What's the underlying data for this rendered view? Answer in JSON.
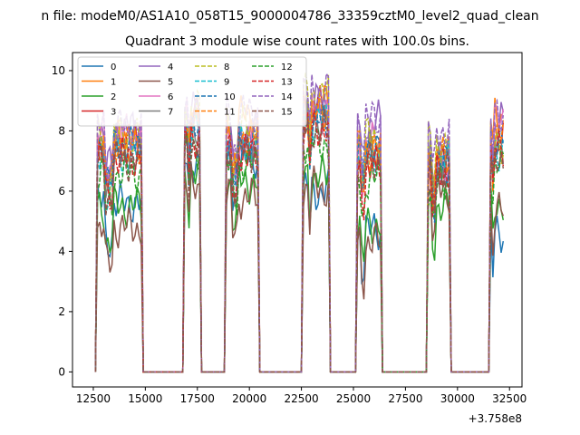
{
  "chart_data": {
    "type": "line",
    "suptitle": "n file: modeM0/AS1A10_058T15_9000004786_33359cztM0_level2_quad_clean",
    "title": "Quadrant 3 module wise count rates with 100.0s bins.",
    "xlabel": "",
    "ylabel": "",
    "x_offset_label": "+3.758e8",
    "xlim": [
      11500,
      33100
    ],
    "ylim": [
      -0.5,
      10.6
    ],
    "x_ticks": [
      12500,
      15000,
      17500,
      20000,
      22500,
      25000,
      27500,
      30000,
      32500
    ],
    "y_ticks": [
      0,
      2,
      4,
      6,
      8,
      10
    ],
    "legend": {
      "position": "top-left",
      "ncol": 4
    },
    "grid": false,
    "active_windows": [
      [
        12650,
        14850
      ],
      [
        16850,
        17600
      ],
      [
        18850,
        20450
      ],
      [
        22550,
        23800
      ],
      [
        25150,
        26350
      ],
      [
        28550,
        29600
      ],
      [
        31550,
        32200
      ]
    ],
    "series": [
      {
        "name": "0",
        "color": "#1f77b4",
        "style": "solid",
        "levels": [
          5.6,
          7.0,
          7.1,
          6.0,
          4.7,
          6.7,
          4.5
        ]
      },
      {
        "name": "1",
        "color": "#ff7f0e",
        "style": "solid",
        "levels": [
          7.7,
          8.6,
          8.5,
          8.9,
          7.4,
          7.2,
          8.5
        ]
      },
      {
        "name": "2",
        "color": "#2ca02c",
        "style": "solid",
        "levels": [
          5.5,
          6.5,
          6.3,
          6.5,
          4.9,
          5.5,
          5.6
        ]
      },
      {
        "name": "3",
        "color": "#d62728",
        "style": "solid",
        "levels": [
          7.6,
          8.5,
          7.5,
          8.8,
          7.1,
          6.8,
          7.8
        ]
      },
      {
        "name": "4",
        "color": "#9467bd",
        "style": "solid",
        "levels": [
          8.0,
          8.6,
          7.9,
          8.9,
          8.3,
          7.0,
          8.3
        ]
      },
      {
        "name": "5",
        "color": "#8c564b",
        "style": "solid",
        "levels": [
          4.8,
          6.2,
          5.8,
          6.1,
          4.3,
          6.0,
          5.3
        ]
      },
      {
        "name": "6",
        "color": "#e377c2",
        "style": "solid",
        "levels": [
          7.9,
          8.5,
          7.6,
          8.6,
          7.6,
          7.0,
          8.3
        ]
      },
      {
        "name": "7",
        "color": "#7f7f7f",
        "style": "solid",
        "levels": [
          7.2,
          8.1,
          7.4,
          8.4,
          7.3,
          7.2,
          7.4
        ]
      },
      {
        "name": "8",
        "color": "#bcbd22",
        "style": "dashed",
        "levels": [
          7.8,
          8.8,
          8.2,
          9.2,
          7.8,
          7.6,
          7.6
        ]
      },
      {
        "name": "9",
        "color": "#17becf",
        "style": "dashed",
        "levels": [
          7.1,
          8.1,
          7.5,
          8.3,
          7.2,
          7.0,
          7.4
        ]
      },
      {
        "name": "10",
        "color": "#1f77b4",
        "style": "dashed",
        "levels": [
          7.5,
          7.9,
          7.6,
          8.3,
          7.5,
          6.9,
          7.8
        ]
      },
      {
        "name": "11",
        "color": "#ff7f0e",
        "style": "dashed",
        "levels": [
          7.6,
          8.3,
          7.8,
          8.6,
          7.4,
          7.1,
          7.9
        ]
      },
      {
        "name": "12",
        "color": "#2ca02c",
        "style": "dashed",
        "levels": [
          6.6,
          7.3,
          6.9,
          7.6,
          6.4,
          6.2,
          6.8
        ]
      },
      {
        "name": "13",
        "color": "#d62728",
        "style": "dashed",
        "levels": [
          7.1,
          7.8,
          7.3,
          8.1,
          6.9,
          6.6,
          7.3
        ]
      },
      {
        "name": "14",
        "color": "#9467bd",
        "style": "dashed",
        "levels": [
          8.1,
          8.9,
          8.6,
          9.3,
          8.4,
          8.0,
          8.4
        ]
      },
      {
        "name": "15",
        "color": "#8c564b",
        "style": "dashed",
        "levels": [
          7.0,
          7.5,
          7.3,
          8.0,
          7.0,
          6.7,
          7.1
        ]
      }
    ]
  }
}
